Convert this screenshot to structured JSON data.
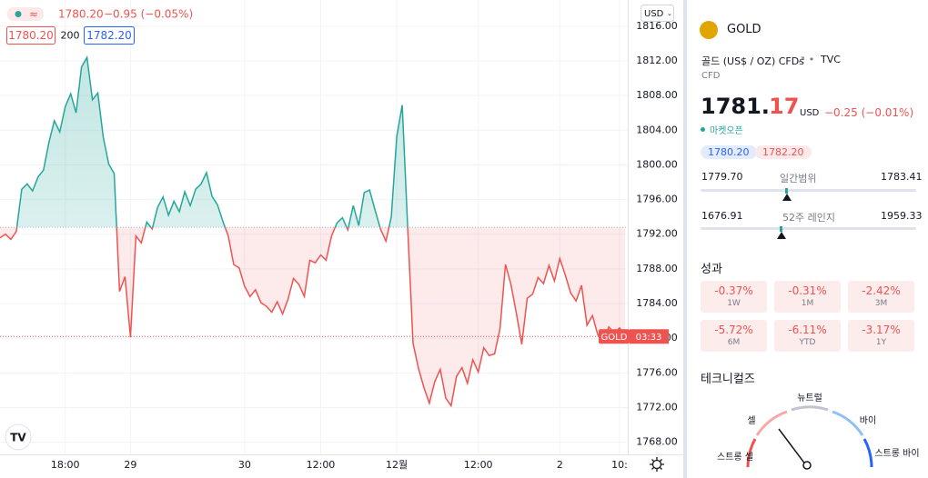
{
  "chart_data": {
    "type": "line",
    "legend": {
      "price": "1780.20",
      "change": "−0.95 (−0.05%)",
      "bid": "1780.20",
      "spread": "200",
      "ask": "1782.20"
    },
    "currency": "USD",
    "symbol_label": "GOLD",
    "countdown": "03:33",
    "colors": {
      "up": "#26a69a",
      "down": "#ef5350"
    },
    "baseline": 1792.8,
    "x": [
      0,
      1,
      2,
      3,
      4,
      5,
      6,
      7,
      8,
      9,
      10,
      11,
      12,
      13,
      14,
      15,
      16,
      17,
      18,
      19,
      20,
      21,
      22,
      23,
      24,
      25,
      26,
      27,
      28,
      29,
      30,
      31,
      32,
      33,
      34,
      35,
      36,
      37,
      38,
      39,
      40,
      41,
      42,
      43,
      44,
      45,
      46,
      47,
      48,
      49,
      50,
      51,
      52,
      53,
      54,
      55,
      56,
      57,
      58,
      59,
      60,
      61,
      62,
      63,
      64,
      65,
      66,
      67,
      68,
      69,
      70,
      71,
      72,
      73,
      74,
      75,
      76,
      77,
      78,
      79,
      80,
      81,
      82,
      83,
      84,
      85,
      86,
      87,
      88,
      89,
      90,
      91,
      92,
      93,
      94,
      95,
      96,
      97,
      98,
      99,
      100,
      101,
      102,
      103,
      104,
      105,
      106,
      107,
      108,
      109,
      110,
      111,
      112,
      113,
      114,
      115
    ],
    "values": [
      1791.6,
      1792.0,
      1791.4,
      1792.3,
      1797.2,
      1797.8,
      1797.0,
      1798.6,
      1799.4,
      1802.6,
      1805.1,
      1803.8,
      1806.7,
      1808.2,
      1806.0,
      1811.3,
      1812.4,
      1807.5,
      1808.3,
      1803.2,
      1800.1,
      1799.0,
      1785.4,
      1787.1,
      1780.1,
      1791.8,
      1791.0,
      1793.4,
      1792.6,
      1795.1,
      1796.3,
      1794.2,
      1795.8,
      1794.6,
      1796.9,
      1795.3,
      1797.2,
      1797.8,
      1799.1,
      1796.4,
      1795.4,
      1793.5,
      1791.8,
      1788.5,
      1788.1,
      1786.0,
      1784.8,
      1785.6,
      1784.1,
      1783.7,
      1783.0,
      1784.2,
      1782.8,
      1784.5,
      1786.9,
      1786.2,
      1784.8,
      1789.0,
      1788.7,
      1789.6,
      1789.0,
      1791.8,
      1793.3,
      1793.9,
      1792.5,
      1795.3,
      1793.0,
      1796.8,
      1797.1,
      1794.8,
      1792.6,
      1791.2,
      1794.0,
      1803.3,
      1806.9,
      1792.8,
      1779.4,
      1776.5,
      1774.3,
      1772.5,
      1775.0,
      1776.4,
      1773.1,
      1772.2,
      1775.6,
      1776.6,
      1774.8,
      1777.5,
      1776.1,
      1778.9,
      1778.0,
      1778.2,
      1781.1,
      1788.5,
      1786.2,
      1782.9,
      1779.3,
      1784.6,
      1785.1,
      1787.0,
      1786.3,
      1788.4,
      1786.6,
      1789.2,
      1787.3,
      1785.2,
      1784.3,
      1786.1,
      1781.5,
      1782.6,
      1780.4,
      1779.6,
      1781.3,
      1780.6,
      1781.2,
      1780.2
    ],
    "xlim": [
      0,
      115.5
    ],
    "xticks": [
      {
        "value": 12,
        "label": "18:00"
      },
      {
        "value": 24,
        "label": "29"
      },
      {
        "value": 45,
        "label": "30"
      },
      {
        "value": 59,
        "label": "12:00"
      },
      {
        "value": 73,
        "label": "12월"
      },
      {
        "value": 88,
        "label": "12:00"
      },
      {
        "value": 103,
        "label": "2"
      },
      {
        "value": 114,
        "label": "10:"
      }
    ],
    "ylim": [
      1766.6,
      1818.5
    ],
    "yticks": [
      {
        "value": 1768,
        "label": "1768.00"
      },
      {
        "value": 1772,
        "label": "1772.00"
      },
      {
        "value": 1776,
        "label": "1776.00"
      },
      {
        "value": 1780,
        "label": "1780.00"
      },
      {
        "value": 1784,
        "label": "1784.00"
      },
      {
        "value": 1788,
        "label": "1788.00"
      },
      {
        "value": 1792,
        "label": "1792.00"
      },
      {
        "value": 1796,
        "label": "1796.00"
      },
      {
        "value": 1800,
        "label": "1800.00"
      },
      {
        "value": 1804,
        "label": "1804.00"
      },
      {
        "value": 1808,
        "label": "1808.00"
      },
      {
        "value": 1812,
        "label": "1812.00"
      },
      {
        "value": 1816,
        "label": "1816.00"
      }
    ],
    "grid": true
  },
  "panel": {
    "symbol": "GOLD",
    "name": "골드 (US$ / OZ) CFDs",
    "exchange": "TVC",
    "kind": "CFD",
    "price_main": "1781.",
    "price_frac": "17",
    "currency": "USD",
    "change": "−0.25 (−0.01%)",
    "status": "마켓오픈",
    "bid": "1780.20",
    "ask": "1782.20",
    "day_range": {
      "low": "1779.70",
      "label": "일간범위",
      "high": "1783.41"
    },
    "year_range": {
      "low": "1676.91",
      "label": "52주 레인지",
      "high": "1959.33"
    },
    "performance": {
      "title": "성과",
      "items": [
        {
          "value": "-0.37%",
          "period": "1W"
        },
        {
          "value": "-0.31%",
          "period": "1M"
        },
        {
          "value": "-2.42%",
          "period": "3M"
        },
        {
          "value": "-5.72%",
          "period": "6M"
        },
        {
          "value": "-6.11%",
          "period": "YTD"
        },
        {
          "value": "-3.17%",
          "period": "1Y"
        }
      ]
    },
    "technicals": {
      "title": "테크니컬즈",
      "neutral": "뉴트럴",
      "sell": "셀",
      "buy": "바이",
      "strong_sell": "스트롱 셀",
      "strong_buy": "스트롱 바이"
    }
  }
}
